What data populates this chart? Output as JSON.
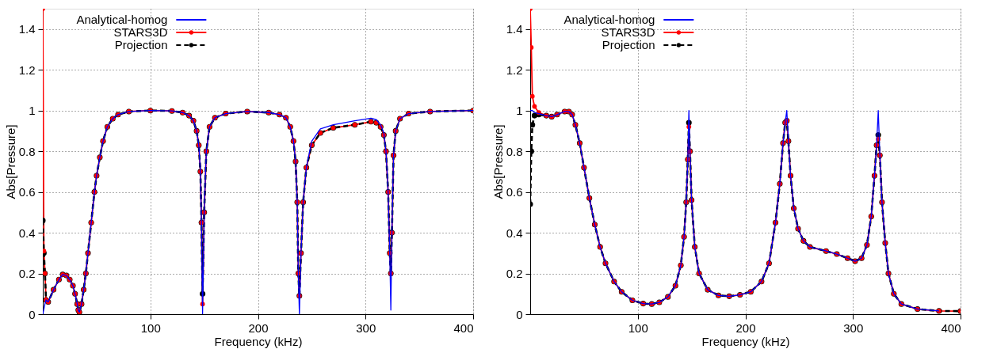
{
  "chart_data": [
    {
      "type": "line",
      "xlabel": "Frequency (kHz)",
      "ylabel": "Abs[Pressure]",
      "xlim": [
        0,
        400
      ],
      "xticks": [
        100,
        200,
        300,
        400
      ],
      "ylim": [
        0,
        1.5
      ],
      "yticks": [
        0,
        0.2,
        0.4,
        0.6,
        0.8,
        1,
        1.2,
        1.4
      ],
      "grid": true,
      "legend": "top left",
      "series": [
        {
          "name": "Analytical-homog",
          "color": "#0000ff",
          "line_style": "solid",
          "marker": "none",
          "x": [
            0,
            1,
            2,
            3,
            5,
            10,
            15,
            18.5,
            22,
            25,
            28,
            30,
            32,
            33,
            34,
            36,
            38,
            40,
            42,
            45,
            48,
            50,
            53,
            56,
            60,
            65,
            70,
            80,
            100,
            120,
            130,
            136,
            140,
            143,
            145,
            146.5,
            147.5,
            148.5,
            150,
            152,
            155,
            160,
            170,
            190,
            210,
            220,
            226,
            230,
            233,
            235,
            236.5,
            237.5,
            238.5,
            240,
            242,
            245,
            250,
            258,
            270,
            290,
            305,
            310,
            314,
            317,
            319,
            321,
            322.5,
            323.5,
            324.5,
            326,
            328,
            332,
            340,
            360,
            400
          ],
          "values": [
            0.0,
            0.025,
            0.05,
            0.07,
            0.06,
            0.12,
            0.17,
            0.195,
            0.19,
            0.17,
            0.14,
            0.1,
            0.05,
            0.02,
            0.01,
            0.05,
            0.12,
            0.2,
            0.3,
            0.45,
            0.6,
            0.68,
            0.77,
            0.85,
            0.92,
            0.96,
            0.98,
            0.995,
            1.0,
            0.998,
            0.99,
            0.975,
            0.95,
            0.9,
            0.83,
            0.7,
            0.45,
            0.0,
            0.5,
            0.8,
            0.92,
            0.965,
            0.985,
            0.995,
            0.99,
            0.98,
            0.965,
            0.92,
            0.85,
            0.75,
            0.55,
            0.2,
            0.0,
            0.3,
            0.55,
            0.72,
            0.85,
            0.91,
            0.93,
            0.95,
            0.962,
            0.955,
            0.93,
            0.89,
            0.8,
            0.6,
            0.3,
            0.02,
            0.4,
            0.78,
            0.9,
            0.96,
            0.985,
            0.995,
            1.0
          ]
        },
        {
          "name": "STARS3D",
          "color": "#ff0000",
          "line_style": "solid",
          "marker": "circle",
          "x": [
            0,
            1,
            2,
            3,
            5,
            10,
            15,
            18.5,
            22,
            25,
            28,
            30,
            32,
            33,
            34,
            36,
            38,
            40,
            42,
            45,
            48,
            50,
            53,
            56,
            60,
            65,
            70,
            80,
            100,
            120,
            130,
            136,
            140,
            143,
            145,
            146.5,
            147.5,
            148.5,
            150,
            152,
            155,
            160,
            170,
            190,
            210,
            220,
            226,
            230,
            233,
            235,
            236.5,
            237.5,
            238.5,
            240,
            242,
            245,
            250,
            258,
            270,
            290,
            305,
            310,
            314,
            317,
            319,
            321,
            322.5,
            323.5,
            324.5,
            326,
            328,
            332,
            340,
            360,
            400
          ],
          "values": [
            1.5,
            0.31,
            0.2,
            0.07,
            0.06,
            0.12,
            0.17,
            0.195,
            0.19,
            0.17,
            0.14,
            0.1,
            0.05,
            0.02,
            0.01,
            0.05,
            0.12,
            0.2,
            0.3,
            0.45,
            0.6,
            0.68,
            0.77,
            0.85,
            0.92,
            0.96,
            0.98,
            0.995,
            1.0,
            0.998,
            0.99,
            0.975,
            0.95,
            0.9,
            0.83,
            0.7,
            0.45,
            0.05,
            0.5,
            0.8,
            0.92,
            0.965,
            0.985,
            0.995,
            0.99,
            0.98,
            0.965,
            0.92,
            0.85,
            0.75,
            0.55,
            0.2,
            0.09,
            0.3,
            0.55,
            0.72,
            0.83,
            0.89,
            0.915,
            0.93,
            0.945,
            0.94,
            0.92,
            0.88,
            0.8,
            0.6,
            0.3,
            0.2,
            0.4,
            0.78,
            0.9,
            0.96,
            0.985,
            0.995,
            1.0
          ]
        },
        {
          "name": "Projection",
          "color": "#000000",
          "line_style": "dashed",
          "marker": "circle",
          "x": [
            0,
            1,
            2,
            3,
            5,
            10,
            15,
            18.5,
            22,
            25,
            28,
            30,
            32,
            33,
            34,
            36,
            38,
            40,
            42,
            45,
            48,
            50,
            53,
            56,
            60,
            65,
            70,
            80,
            100,
            120,
            130,
            136,
            140,
            143,
            145,
            146.5,
            147.5,
            148.5,
            150,
            152,
            155,
            160,
            170,
            190,
            210,
            220,
            226,
            230,
            233,
            235,
            236.5,
            237.5,
            238.5,
            240,
            242,
            245,
            250,
            258,
            270,
            290,
            305,
            310,
            314,
            317,
            319,
            321,
            322.5,
            323.5,
            324.5,
            326,
            328,
            332,
            340,
            360,
            400
          ],
          "values": [
            0.46,
            0.3,
            0.2,
            0.07,
            0.06,
            0.12,
            0.17,
            0.195,
            0.19,
            0.17,
            0.14,
            0.1,
            0.05,
            0.02,
            0.01,
            0.05,
            0.12,
            0.2,
            0.3,
            0.45,
            0.6,
            0.68,
            0.77,
            0.85,
            0.92,
            0.96,
            0.98,
            0.995,
            1.0,
            0.998,
            0.99,
            0.975,
            0.95,
            0.9,
            0.83,
            0.7,
            0.45,
            0.1,
            0.5,
            0.8,
            0.92,
            0.965,
            0.985,
            0.995,
            0.99,
            0.98,
            0.965,
            0.92,
            0.85,
            0.75,
            0.55,
            0.2,
            0.09,
            0.3,
            0.55,
            0.72,
            0.83,
            0.89,
            0.915,
            0.93,
            0.945,
            0.94,
            0.92,
            0.88,
            0.8,
            0.6,
            0.3,
            0.2,
            0.4,
            0.78,
            0.9,
            0.96,
            0.985,
            0.995,
            1.0
          ]
        }
      ]
    },
    {
      "type": "line",
      "xlabel": "Frequency (kHz)",
      "ylabel": "Abs[Pressure]",
      "xlim": [
        0,
        400
      ],
      "xticks": [
        100,
        200,
        300,
        400
      ],
      "ylim": [
        0,
        1.5
      ],
      "yticks": [
        0,
        0.2,
        0.4,
        0.6,
        0.8,
        1,
        1.2,
        1.4
      ],
      "grid": true,
      "legend": "top left",
      "series": [
        {
          "name": "Analytical-homog",
          "color": "#0000ff",
          "line_style": "solid",
          "marker": "none",
          "x": [
            0,
            1,
            2,
            4,
            8,
            15,
            20,
            25,
            32,
            36,
            39,
            42,
            46,
            50,
            55,
            60,
            65,
            70,
            78,
            85,
            95,
            105,
            113,
            120,
            128,
            135,
            140,
            143,
            145,
            146.5,
            147.5,
            148.5,
            150,
            153,
            157,
            165,
            175,
            185,
            195,
            205,
            215,
            222,
            228,
            232,
            235,
            237,
            238.5,
            240,
            242,
            245,
            249,
            254,
            260,
            275,
            285,
            295,
            302,
            308,
            313,
            317,
            320,
            322,
            323.5,
            325,
            327,
            330,
            333,
            338,
            345,
            360,
            380
          ],
          "values": [
            1.0,
            1.0,
            1.0,
            0.99,
            0.985,
            0.975,
            0.97,
            0.98,
            0.995,
            0.995,
            0.98,
            0.93,
            0.84,
            0.72,
            0.57,
            0.44,
            0.33,
            0.25,
            0.16,
            0.11,
            0.068,
            0.052,
            0.05,
            0.058,
            0.085,
            0.14,
            0.24,
            0.38,
            0.55,
            0.76,
            1.0,
            0.8,
            0.56,
            0.33,
            0.2,
            0.12,
            0.092,
            0.088,
            0.095,
            0.11,
            0.16,
            0.25,
            0.45,
            0.64,
            0.84,
            0.94,
            1.0,
            0.85,
            0.68,
            0.52,
            0.42,
            0.36,
            0.33,
            0.31,
            0.295,
            0.275,
            0.26,
            0.275,
            0.34,
            0.48,
            0.68,
            0.83,
            1.0,
            0.78,
            0.55,
            0.35,
            0.2,
            0.1,
            0.05,
            0.025,
            0.016
          ]
        },
        {
          "name": "STARS3D",
          "color": "#ff0000",
          "line_style": "solid",
          "marker": "circle",
          "x": [
            0,
            1,
            2,
            4,
            8,
            15,
            20,
            25,
            32,
            36,
            39,
            42,
            46,
            50,
            55,
            60,
            65,
            70,
            78,
            85,
            95,
            105,
            113,
            120,
            128,
            135,
            140,
            143,
            145,
            146.5,
            147.5,
            148.5,
            150,
            153,
            157,
            165,
            175,
            185,
            195,
            205,
            215,
            222,
            228,
            232,
            235,
            237,
            238.5,
            240,
            242,
            245,
            249,
            254,
            260,
            275,
            285,
            295,
            302,
            308,
            313,
            317,
            320,
            322,
            323.5,
            325,
            327,
            330,
            333,
            338,
            345,
            360,
            380,
            400
          ],
          "values": [
            1.5,
            1.31,
            1.07,
            1.02,
            0.99,
            0.975,
            0.97,
            0.98,
            0.995,
            0.995,
            0.98,
            0.93,
            0.84,
            0.72,
            0.57,
            0.44,
            0.33,
            0.25,
            0.16,
            0.11,
            0.068,
            0.052,
            0.05,
            0.058,
            0.085,
            0.14,
            0.24,
            0.38,
            0.55,
            0.76,
            0.92,
            0.8,
            0.56,
            0.33,
            0.2,
            0.12,
            0.092,
            0.088,
            0.095,
            0.11,
            0.16,
            0.25,
            0.45,
            0.64,
            0.84,
            0.94,
            0.95,
            0.85,
            0.68,
            0.52,
            0.42,
            0.36,
            0.33,
            0.31,
            0.295,
            0.275,
            0.26,
            0.275,
            0.34,
            0.48,
            0.68,
            0.83,
            0.86,
            0.78,
            0.55,
            0.35,
            0.2,
            0.1,
            0.05,
            0.025,
            0.016,
            0.015
          ]
        },
        {
          "name": "Projection",
          "color": "#000000",
          "line_style": "dashed",
          "marker": "circle",
          "x": [
            0,
            1,
            2,
            4,
            8,
            15,
            20,
            25,
            32,
            36,
            39,
            42,
            46,
            50,
            55,
            60,
            65,
            70,
            78,
            85,
            95,
            105,
            113,
            120,
            128,
            135,
            140,
            143,
            145,
            146.5,
            147.5,
            148.5,
            150,
            153,
            157,
            165,
            175,
            185,
            195,
            205,
            215,
            222,
            228,
            232,
            235,
            237,
            238.5,
            240,
            242,
            245,
            249,
            254,
            260,
            275,
            285,
            295,
            302,
            308,
            313,
            317,
            320,
            322,
            323.5,
            325,
            327,
            330,
            333,
            338,
            345,
            360,
            380,
            400
          ],
          "values": [
            0.54,
            0.8,
            0.93,
            0.975,
            0.98,
            0.975,
            0.97,
            0.98,
            0.995,
            0.995,
            0.98,
            0.93,
            0.84,
            0.72,
            0.57,
            0.44,
            0.33,
            0.25,
            0.16,
            0.11,
            0.068,
            0.052,
            0.05,
            0.058,
            0.085,
            0.14,
            0.24,
            0.38,
            0.55,
            0.76,
            0.94,
            0.8,
            0.56,
            0.33,
            0.2,
            0.12,
            0.092,
            0.088,
            0.095,
            0.11,
            0.16,
            0.25,
            0.45,
            0.64,
            0.84,
            0.94,
            0.95,
            0.85,
            0.68,
            0.52,
            0.42,
            0.36,
            0.33,
            0.31,
            0.295,
            0.275,
            0.26,
            0.275,
            0.34,
            0.48,
            0.68,
            0.83,
            0.88,
            0.78,
            0.55,
            0.35,
            0.2,
            0.1,
            0.05,
            0.025,
            0.016,
            0.015
          ]
        }
      ]
    }
  ]
}
